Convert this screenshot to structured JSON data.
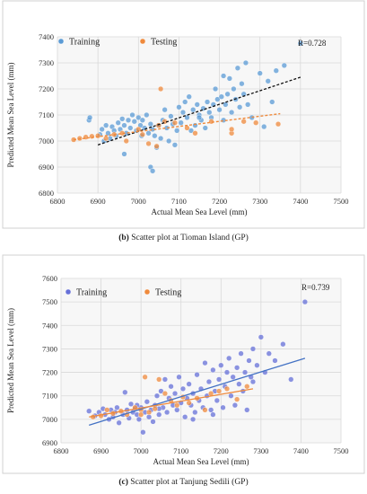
{
  "chart_data": [
    {
      "type": "scatter",
      "title": "",
      "xlabel": "Actual Mean Sea Level (mm)",
      "ylabel": "Predicted Mean Sea Level (mm)",
      "xlim": [
        6800,
        7500
      ],
      "ylim": [
        6800,
        7400
      ],
      "xticks": [
        "6800",
        "6900",
        "7000",
        "7100",
        "7200",
        "7300",
        "7400",
        "7500"
      ],
      "yticks": [
        "6800",
        "6900",
        "7000",
        "7100",
        "7200",
        "7300",
        "7400"
      ],
      "grid": true,
      "legend_placement": "top",
      "annotation": "R=0.728",
      "caption_letter": "(b)",
      "caption_text": " Scatter plot at Tioman Island (GP)",
      "trendlines": [
        {
          "series": "Training",
          "style": "dashed",
          "color": "#111111",
          "x": [
            6900,
            7400
          ],
          "y": [
            6985,
            7245
          ]
        },
        {
          "series": "Testing",
          "style": "dashed",
          "color": "#ef8a3c",
          "x": [
            6840,
            7350
          ],
          "y": [
            7005,
            7105
          ]
        }
      ],
      "series": [
        {
          "name": "Training",
          "color": "#5b9bd5",
          "points": [
            [
              6878,
              7080
            ],
            [
              6880,
              7090
            ],
            [
              6905,
              7025
            ],
            [
              6910,
              7045
            ],
            [
              6915,
              7000
            ],
            [
              6920,
              7060
            ],
            [
              6925,
              7030
            ],
            [
              6930,
              7010
            ],
            [
              6935,
              7055
            ],
            [
              6940,
              7040
            ],
            [
              6945,
              7020
            ],
            [
              6950,
              7070
            ],
            [
              6955,
              7045
            ],
            [
              6960,
              7085
            ],
            [
              6965,
              7060
            ],
            [
              6970,
              7030
            ],
            [
              6975,
              7080
            ],
            [
              6980,
              7050
            ],
            [
              6985,
              7100
            ],
            [
              6990,
              7075
            ],
            [
              6995,
              7040
            ],
            [
              7000,
              7090
            ],
            [
              7005,
              7060
            ],
            [
              7008,
              7020
            ],
            [
              7010,
              7080
            ],
            [
              7015,
              7050
            ],
            [
              7020,
              7100
            ],
            [
              7025,
              7030
            ],
            [
              7030,
              7065
            ],
            [
              7035,
              7045
            ],
            [
              7040,
              7020
            ],
            [
              7045,
              6975
            ],
            [
              7050,
              7060
            ],
            [
              7055,
              7010
            ],
            [
              7060,
              7080
            ],
            [
              7065,
              7120
            ],
            [
              7070,
              7050
            ],
            [
              7075,
              7000
            ],
            [
              7080,
              7095
            ],
            [
              7085,
              7065
            ],
            [
              7090,
              6985
            ],
            [
              7095,
              7040
            ],
            [
              7100,
              7130
            ],
            [
              7105,
              7070
            ],
            [
              7110,
              7110
            ],
            [
              7115,
              7150
            ],
            [
              7120,
              7090
            ],
            [
              7125,
              7170
            ],
            [
              7130,
              7040
            ],
            [
              7135,
              7120
            ],
            [
              7140,
              7060
            ],
            [
              7145,
              7140
            ],
            [
              7150,
              7100
            ],
            [
              7155,
              7080
            ],
            [
              7160,
              7125
            ],
            [
              7165,
              7050
            ],
            [
              7170,
              7150
            ],
            [
              7175,
              7110
            ],
            [
              7180,
              7090
            ],
            [
              7185,
              7140
            ],
            [
              7190,
              7200
            ],
            [
              7195,
              7160
            ],
            [
              7200,
              7120
            ],
            [
              7205,
              7170
            ],
            [
              7210,
              7080
            ],
            [
              7215,
              7140
            ],
            [
              7220,
              7180
            ],
            [
              7225,
              7240
            ],
            [
              7230,
              7110
            ],
            [
              7235,
              7200
            ],
            [
              7240,
              7160
            ],
            [
              7245,
              7280
            ],
            [
              7250,
              7130
            ],
            [
              7255,
              7220
            ],
            [
              7260,
              7180
            ],
            [
              7265,
              7300
            ],
            [
              7270,
              7140
            ],
            [
              7280,
              7090
            ],
            [
              7300,
              7260
            ],
            [
              7310,
              7055
            ],
            [
              7320,
              7230
            ],
            [
              7330,
              7150
            ],
            [
              7340,
              7270
            ],
            [
              7360,
              7290
            ],
            [
              7400,
              7375
            ],
            [
              7030,
              6900
            ],
            [
              7035,
              6885
            ],
            [
              6965,
              6950
            ],
            [
              7150,
              7090
            ],
            [
              7210,
              7250
            ]
          ]
        },
        {
          "name": "Testing",
          "color": "#ef8a3c",
          "points": [
            [
              6840,
              7005
            ],
            [
              6855,
              7010
            ],
            [
              6870,
              7015
            ],
            [
              6885,
              7018
            ],
            [
              6900,
              7020
            ],
            [
              6920,
              7010
            ],
            [
              6940,
              7025
            ],
            [
              6960,
              7030
            ],
            [
              6970,
              7000
            ],
            [
              7000,
              7045
            ],
            [
              7010,
              7025
            ],
            [
              7025,
              6990
            ],
            [
              7045,
              6980
            ],
            [
              7050,
              7060
            ],
            [
              7055,
              7200
            ],
            [
              7065,
              7075
            ],
            [
              7090,
              7070
            ],
            [
              7120,
              7050
            ],
            [
              7140,
              7030
            ],
            [
              7180,
              7075
            ],
            [
              7230,
              7030
            ],
            [
              7230,
              7045
            ],
            [
              7260,
              7075
            ],
            [
              7290,
              7070
            ],
            [
              7345,
              7065
            ]
          ]
        }
      ]
    },
    {
      "type": "scatter",
      "title": "",
      "xlabel": "Actual Mean Sea Level (mm)",
      "ylabel": "Predicted Mean Sea Level (mm)",
      "xlim": [
        6800,
        7500
      ],
      "ylim": [
        6900,
        7600
      ],
      "xticks": [
        "6800",
        "6900",
        "7000",
        "7100",
        "7200",
        "7300",
        "7400",
        "7500"
      ],
      "yticks": [
        "6900",
        "7000",
        "7100",
        "7200",
        "7300",
        "7400",
        "7500",
        "7600"
      ],
      "grid": true,
      "legend_placement": "top",
      "annotation": "R=0.739",
      "caption_letter": "(c)",
      "caption_text": " Scatter plot at Tanjung Sedili (GP)",
      "trendlines": [
        {
          "series": "Training",
          "style": "solid",
          "color": "#4472c4",
          "x": [
            6870,
            7410
          ],
          "y": [
            6975,
            7260
          ]
        },
        {
          "series": "Testing",
          "style": "solid",
          "color": "#ef8a3c",
          "x": [
            6870,
            7280
          ],
          "y": [
            7010,
            7130
          ]
        }
      ],
      "series": [
        {
          "name": "Training",
          "color": "#6670d8",
          "points": [
            [
              6870,
              7035
            ],
            [
              6885,
              7015
            ],
            [
              6895,
              7030
            ],
            [
              6905,
              7045
            ],
            [
              6910,
              7020
            ],
            [
              6920,
              7000
            ],
            [
              6925,
              7040
            ],
            [
              6930,
              7010
            ],
            [
              6935,
              7030
            ],
            [
              6940,
              7050
            ],
            [
              6945,
              6985
            ],
            [
              6955,
              7020
            ],
            [
              6960,
              7115
            ],
            [
              6965,
              7040
            ],
            [
              6970,
              7005
            ],
            [
              6975,
              7065
            ],
            [
              6980,
              7030
            ],
            [
              6985,
              7045
            ],
            [
              6990,
              7020
            ],
            [
              6995,
              7000
            ],
            [
              7000,
              7050
            ],
            [
              7005,
              6945
            ],
            [
              7010,
              7030
            ],
            [
              7015,
              7075
            ],
            [
              7020,
              7010
            ],
            [
              7025,
              7040
            ],
            [
              7030,
              6990
            ],
            [
              7035,
              7060
            ],
            [
              7040,
              7100
            ],
            [
              7045,
              7020
            ],
            [
              7050,
              7120
            ],
            [
              7055,
              7050
            ],
            [
              7060,
              7170
            ],
            [
              7065,
              7030
            ],
            [
              7070,
              7090
            ],
            [
              7075,
              7140
            ],
            [
              7080,
              7060
            ],
            [
              7085,
              7110
            ],
            [
              7090,
              7040
            ],
            [
              7095,
              7180
            ],
            [
              7100,
              7070
            ],
            [
              7105,
              7130
            ],
            [
              7110,
              7010
            ],
            [
              7115,
              7090
            ],
            [
              7120,
              7150
            ],
            [
              7125,
              7060
            ],
            [
              7130,
              7110
            ],
            [
              7135,
              7030
            ],
            [
              7140,
              7190
            ],
            [
              7145,
              7080
            ],
            [
              7150,
              7130
            ],
            [
              7155,
              7050
            ],
            [
              7160,
              7240
            ],
            [
              7165,
              7100
            ],
            [
              7170,
              7160
            ],
            [
              7175,
              7040
            ],
            [
              7180,
              7210
            ],
            [
              7185,
              7120
            ],
            [
              7190,
              7080
            ],
            [
              7195,
              7170
            ],
            [
              7200,
              7230
            ],
            [
              7205,
              7050
            ],
            [
              7210,
              7140
            ],
            [
              7215,
              7200
            ],
            [
              7220,
              7260
            ],
            [
              7225,
              7100
            ],
            [
              7230,
              7180
            ],
            [
              7235,
              7060
            ],
            [
              7240,
              7220
            ],
            [
              7245,
              7150
            ],
            [
              7250,
              7280
            ],
            [
              7255,
              7120
            ],
            [
              7260,
              7200
            ],
            [
              7265,
              7040
            ],
            [
              7270,
              7250
            ],
            [
              7275,
              7180
            ],
            [
              7280,
              7300
            ],
            [
              7290,
              7230
            ],
            [
              7300,
              7350
            ],
            [
              7310,
              7200
            ],
            [
              7320,
              7280
            ],
            [
              7335,
              7250
            ],
            [
              7355,
              7320
            ],
            [
              7375,
              7170
            ],
            [
              7410,
              7500
            ],
            [
              7180,
              7020
            ],
            [
              7045,
              7045
            ],
            [
              6990,
              7060
            ],
            [
              7130,
              7000
            ],
            [
              7280,
              7160
            ]
          ]
        },
        {
          "name": "Testing",
          "color": "#ef8a3c",
          "points": [
            [
              6880,
              7010
            ],
            [
              6900,
              7015
            ],
            [
              6915,
              7040
            ],
            [
              6930,
              7025
            ],
            [
              6950,
              7035
            ],
            [
              6965,
              7020
            ],
            [
              6985,
              7050
            ],
            [
              7000,
              7040
            ],
            [
              7020,
              7030
            ],
            [
              7035,
              7045
            ],
            [
              7045,
              7170
            ],
            [
              7060,
              7110
            ],
            [
              7075,
              7080
            ],
            [
              7090,
              7060
            ],
            [
              7105,
              7095
            ],
            [
              7120,
              7070
            ],
            [
              7140,
              7090
            ],
            [
              7160,
              7040
            ],
            [
              7175,
              7110
            ],
            [
              7195,
              7120
            ],
            [
              7215,
              7130
            ],
            [
              7240,
              7085
            ],
            [
              7265,
              7140
            ],
            [
              7010,
              7180
            ],
            [
              7000,
              7020
            ]
          ]
        }
      ]
    }
  ]
}
